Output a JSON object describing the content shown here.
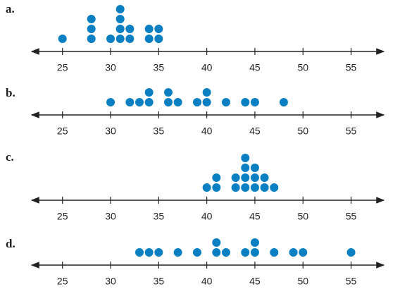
{
  "chart_data": [
    {
      "type": "dot",
      "title": "a.",
      "color": "#0a7fc1",
      "xlim": [
        21.8,
        58.4
      ],
      "xticks": [
        25,
        30,
        35,
        40,
        45,
        50,
        55
      ],
      "x": [
        25,
        28,
        30,
        31,
        32,
        34,
        35
      ],
      "values": [
        1,
        3,
        1,
        4,
        2,
        2,
        2
      ]
    },
    {
      "type": "dot",
      "title": "b.",
      "color": "#0a7fc1",
      "xlim": [
        21.8,
        58.4
      ],
      "xticks": [
        25,
        30,
        35,
        40,
        45,
        50,
        55
      ],
      "x": [
        30,
        32,
        33,
        34,
        36,
        37,
        39,
        40,
        42,
        44,
        45,
        48
      ],
      "values": [
        1,
        1,
        1,
        2,
        2,
        1,
        1,
        2,
        1,
        1,
        1,
        1
      ]
    },
    {
      "type": "dot",
      "title": "c.",
      "color": "#0a7fc1",
      "xlim": [
        21.8,
        58.4
      ],
      "xticks": [
        25,
        30,
        35,
        40,
        45,
        50,
        55
      ],
      "x": [
        40,
        41,
        43,
        44,
        45,
        46,
        47
      ],
      "values": [
        1,
        2,
        2,
        4,
        3,
        2,
        1
      ]
    },
    {
      "type": "dot",
      "title": "d.",
      "color": "#0a7fc1",
      "xlim": [
        21.8,
        58.4
      ],
      "xticks": [
        25,
        30,
        35,
        40,
        45,
        50,
        55
      ],
      "x": [
        33,
        34,
        35,
        37,
        39,
        41,
        42,
        44,
        45,
        47,
        49,
        50,
        55
      ],
      "values": [
        1,
        1,
        1,
        1,
        1,
        2,
        1,
        1,
        2,
        1,
        1,
        1,
        1
      ]
    }
  ]
}
